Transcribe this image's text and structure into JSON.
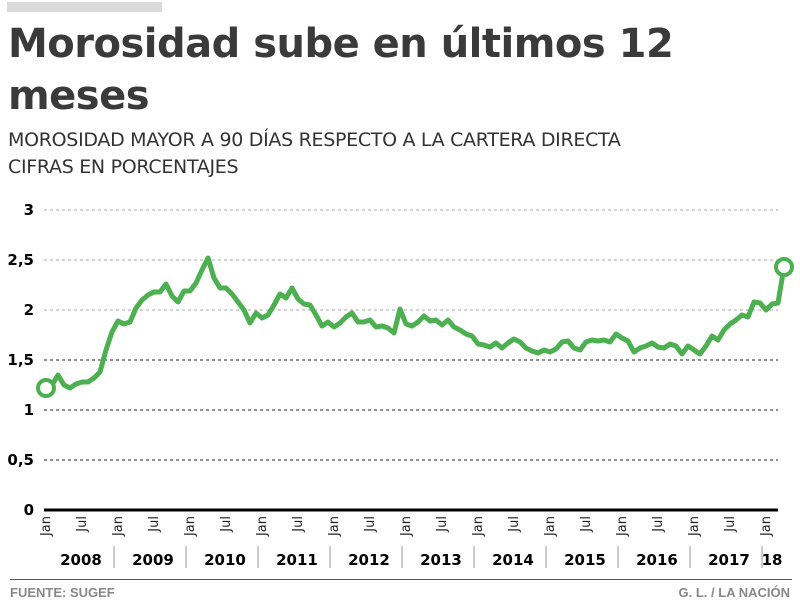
{
  "header": {
    "title": "Morosidad sube en últimos 12 meses",
    "subtitle_line1": "MOROSIDAD MAYOR A 90 DÍAS RESPECTO A LA CARTERA DIRECTA",
    "subtitle_line2": "CIFRAS EN PORCENTAJES"
  },
  "footer": {
    "source": "FUENTE: SUGEF",
    "credit": "G. L. / LA NACIÓN"
  },
  "colors": {
    "line": "#4caf50",
    "text": "#3d3d3d",
    "muted": "#888888"
  },
  "chart_data": {
    "type": "line",
    "title": "Morosidad sube en últimos 12 meses",
    "subtitle": "MOROSIDAD MAYOR A 90 DÍAS RESPECTO A LA CARTERA DIRECTA / CIFRAS EN PORCENTAJES",
    "xlabel": "",
    "ylabel": "",
    "ylim": [
      0,
      3
    ],
    "yticks": [
      0,
      0.5,
      1,
      1.5,
      2,
      2.5,
      3
    ],
    "ytick_labels": [
      "0",
      "0,5",
      "1",
      "1,5",
      "2",
      "2,5",
      "3"
    ],
    "grid": true,
    "x_start": "2008-01",
    "x_end": "2018-03",
    "month_tick_labels": [
      "Jan",
      "Jul"
    ],
    "year_labels": [
      "2008",
      "2009",
      "2010",
      "2011",
      "2012",
      "2013",
      "2014",
      "2015",
      "2016",
      "2017",
      "18"
    ],
    "series": [
      {
        "name": "Morosidad mayor a 90 días",
        "start": "2008-01",
        "frequency": "monthly",
        "values": [
          1.22,
          1.25,
          1.35,
          1.25,
          1.22,
          1.26,
          1.28,
          1.28,
          1.32,
          1.38,
          1.6,
          1.78,
          1.89,
          1.86,
          1.88,
          2.02,
          2.1,
          2.15,
          2.18,
          2.18,
          2.26,
          2.14,
          2.08,
          2.19,
          2.19,
          2.27,
          2.4,
          2.52,
          2.32,
          2.22,
          2.22,
          2.16,
          2.08,
          2.0,
          1.87,
          1.97,
          1.92,
          1.95,
          2.05,
          2.16,
          2.12,
          2.22,
          2.11,
          2.06,
          2.05,
          1.95,
          1.84,
          1.88,
          1.83,
          1.87,
          1.93,
          1.97,
          1.88,
          1.88,
          1.9,
          1.83,
          1.84,
          1.82,
          1.77,
          2.01,
          1.86,
          1.84,
          1.88,
          1.94,
          1.89,
          1.9,
          1.85,
          1.9,
          1.83,
          1.8,
          1.76,
          1.74,
          1.66,
          1.65,
          1.63,
          1.67,
          1.62,
          1.67,
          1.71,
          1.68,
          1.62,
          1.59,
          1.57,
          1.6,
          1.58,
          1.61,
          1.68,
          1.69,
          1.62,
          1.6,
          1.68,
          1.7,
          1.69,
          1.7,
          1.68,
          1.76,
          1.72,
          1.69,
          1.58,
          1.62,
          1.64,
          1.67,
          1.63,
          1.62,
          1.66,
          1.64,
          1.56,
          1.64,
          1.6,
          1.56,
          1.64,
          1.74,
          1.7,
          1.8,
          1.86,
          1.9,
          1.95,
          1.93,
          2.08,
          2.07,
          2.0,
          2.06,
          2.07,
          2.43
        ],
        "endpoint_markers": [
          "start",
          "end"
        ]
      }
    ]
  }
}
